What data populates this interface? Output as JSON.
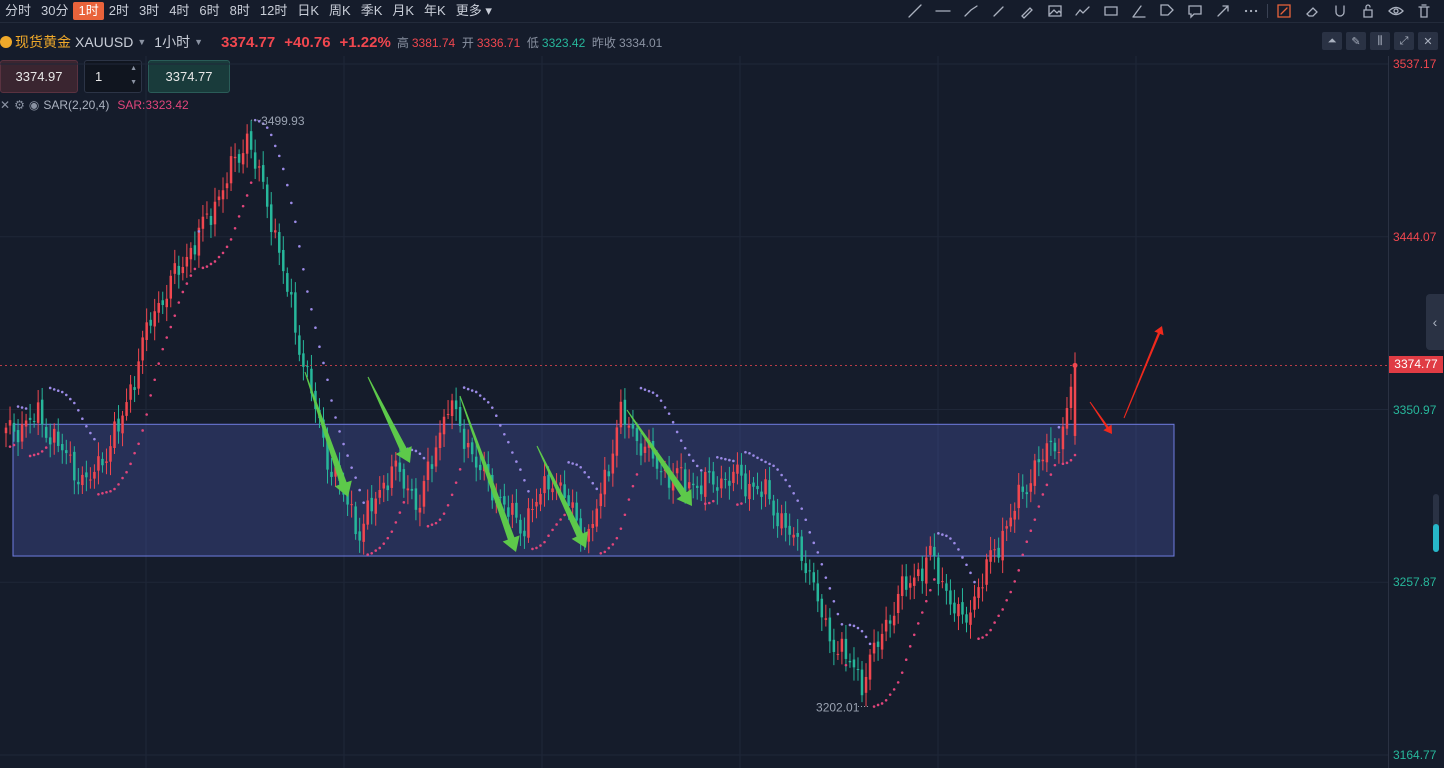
{
  "toolbar": {
    "intervals": [
      "分时",
      "30分",
      "1时",
      "2时",
      "3时",
      "4时",
      "6时",
      "8时",
      "12时",
      "日K",
      "周K",
      "季K",
      "月K",
      "年K",
      "更多"
    ],
    "active_interval": "1时"
  },
  "symbol": {
    "name": "现货黄金",
    "code": "XAUUSD",
    "interval": "1小时",
    "last": "3374.77",
    "change": "+40.76",
    "change_pct": "+1.22%",
    "high_label": "高",
    "high": "3381.74",
    "open_label": "开",
    "open": "3336.71",
    "low_label": "低",
    "low": "3323.42",
    "prev_label": "昨收",
    "prev": "3334.01"
  },
  "order": {
    "sell_price": "3374.97",
    "quantity": "1",
    "buy_price": "3374.77"
  },
  "indicator": {
    "name": "SAR(2,20,4)",
    "value": "SAR:3323.42"
  },
  "colors": {
    "up": "#f0474f",
    "down": "#27b79b",
    "sar_up": "#e0457b",
    "sar_down": "#9b8ae6",
    "zone": "#5763c9",
    "arrow_green": "#5dc94a",
    "arrow_red": "#f0291d"
  },
  "icons": [
    "trend-line-icon",
    "horizontal-line-icon",
    "ray-icon",
    "brush-icon",
    "pen-icon",
    "image-icon",
    "chart-icon",
    "rectangle-icon",
    "angle-icon",
    "tag-icon",
    "comment-icon",
    "arrow-icon",
    "more-icon",
    "edit-icon",
    "eraser-icon",
    "magnet-icon",
    "lock-icon",
    "eye-icon",
    "trash-icon"
  ],
  "chart_data": {
    "type": "candlestick",
    "y_ticks": [
      3537.17,
      3444.07,
      3350.97,
      3257.87,
      3164.77
    ],
    "ylim": [
      3164.77,
      3537.17
    ],
    "current_price_label": "3374.77",
    "max_label": "3499.93",
    "min_label": "3202.01",
    "range_zone": [
      3272,
      3343
    ],
    "anchors": [
      [
        0,
        3338
      ],
      [
        8,
        3347
      ],
      [
        20,
        3310
      ],
      [
        28,
        3340
      ],
      [
        36,
        3400
      ],
      [
        48,
        3445
      ],
      [
        55,
        3475
      ],
      [
        60,
        3498
      ],
      [
        66,
        3455
      ],
      [
        72,
        3395
      ],
      [
        80,
        3325
      ],
      [
        88,
        3285
      ],
      [
        96,
        3320
      ],
      [
        103,
        3300
      ],
      [
        110,
        3355
      ],
      [
        118,
        3318
      ],
      [
        128,
        3287
      ],
      [
        136,
        3315
      ],
      [
        145,
        3280
      ],
      [
        153,
        3348
      ],
      [
        163,
        3318
      ],
      [
        172,
        3310
      ],
      [
        182,
        3315
      ],
      [
        189,
        3305
      ],
      [
        199,
        3270
      ],
      [
        204,
        3232
      ],
      [
        213,
        3205
      ],
      [
        222,
        3250
      ],
      [
        230,
        3272
      ],
      [
        238,
        3235
      ],
      [
        246,
        3275
      ],
      [
        256,
        3320
      ],
      [
        263,
        3338
      ],
      [
        266,
        3374.77
      ]
    ],
    "arrows_green": [
      [
        [
          305,
          372
        ],
        [
          348,
          497
        ]
      ],
      [
        [
          368,
          377
        ],
        [
          410,
          463
        ]
      ],
      [
        [
          460,
          396
        ],
        [
          516,
          552
        ]
      ],
      [
        [
          537,
          446
        ],
        [
          586,
          548
        ]
      ],
      [
        [
          627,
          410
        ],
        [
          692,
          506
        ]
      ]
    ],
    "arrows_red": [
      [
        [
          1090,
          402
        ],
        [
          1112,
          434
        ]
      ],
      [
        [
          1124,
          418
        ],
        [
          1162,
          326
        ]
      ]
    ]
  }
}
